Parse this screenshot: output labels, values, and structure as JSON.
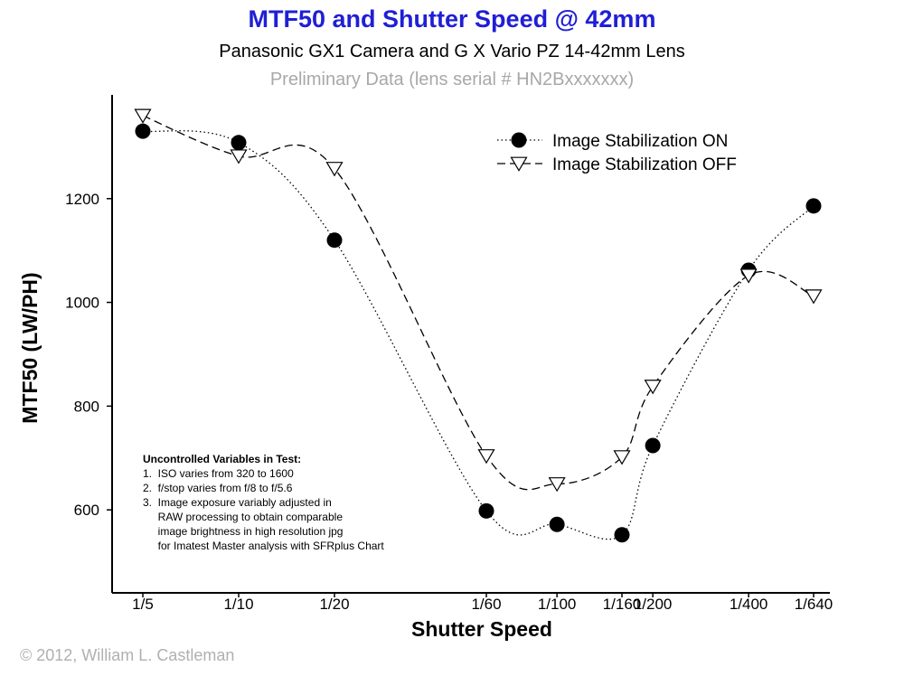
{
  "chart_data": {
    "type": "line",
    "title": "MTF50 and Shutter Speed @ 42mm",
    "subtitle": "Panasonic GX1 Camera and G X Vario PZ 14-42mm Lens",
    "subtitle2": "Preliminary Data (lens serial # HN2Bxxxxxxx)",
    "xlabel": "Shutter Speed",
    "ylabel": "MTF50  (LW/PH)",
    "x_scale": "log",
    "categories": [
      "1/5",
      "1/10",
      "1/20",
      "1/60",
      "1/100",
      "1/160",
      "1/200",
      "1/400",
      "1/640"
    ],
    "yticks": [
      600,
      800,
      1000,
      1200
    ],
    "ylim": [
      440,
      1400
    ],
    "grid": false,
    "legend_position": "top-right",
    "series": [
      {
        "name": "Image Stabilization ON",
        "marker": "filled-circle",
        "line": "dotted",
        "color": "#000000",
        "values": [
          1330,
          1308,
          1120,
          598,
          572,
          552,
          724,
          1062,
          1186
        ]
      },
      {
        "name": "Image Stabilization OFF",
        "marker": "open-triangle-down",
        "line": "dashed",
        "color": "#000000",
        "values": [
          1360,
          1282,
          1258,
          704,
          650,
          702,
          838,
          1052,
          1012
        ]
      }
    ]
  },
  "notes": {
    "heading": "Uncontrolled Variables in Test:",
    "lines": [
      "1.  ISO varies from 320 to 1600",
      "2.  f/stop varies from f/8 to f/5.6",
      "3.  Image exposure variably adjusted in",
      "     RAW processing to obtain comparable",
      "     image brightness in high resolution jpg",
      "     for Imatest Master analysis with SFRplus Chart"
    ]
  },
  "copyright": "© 2012, William L. Castleman"
}
